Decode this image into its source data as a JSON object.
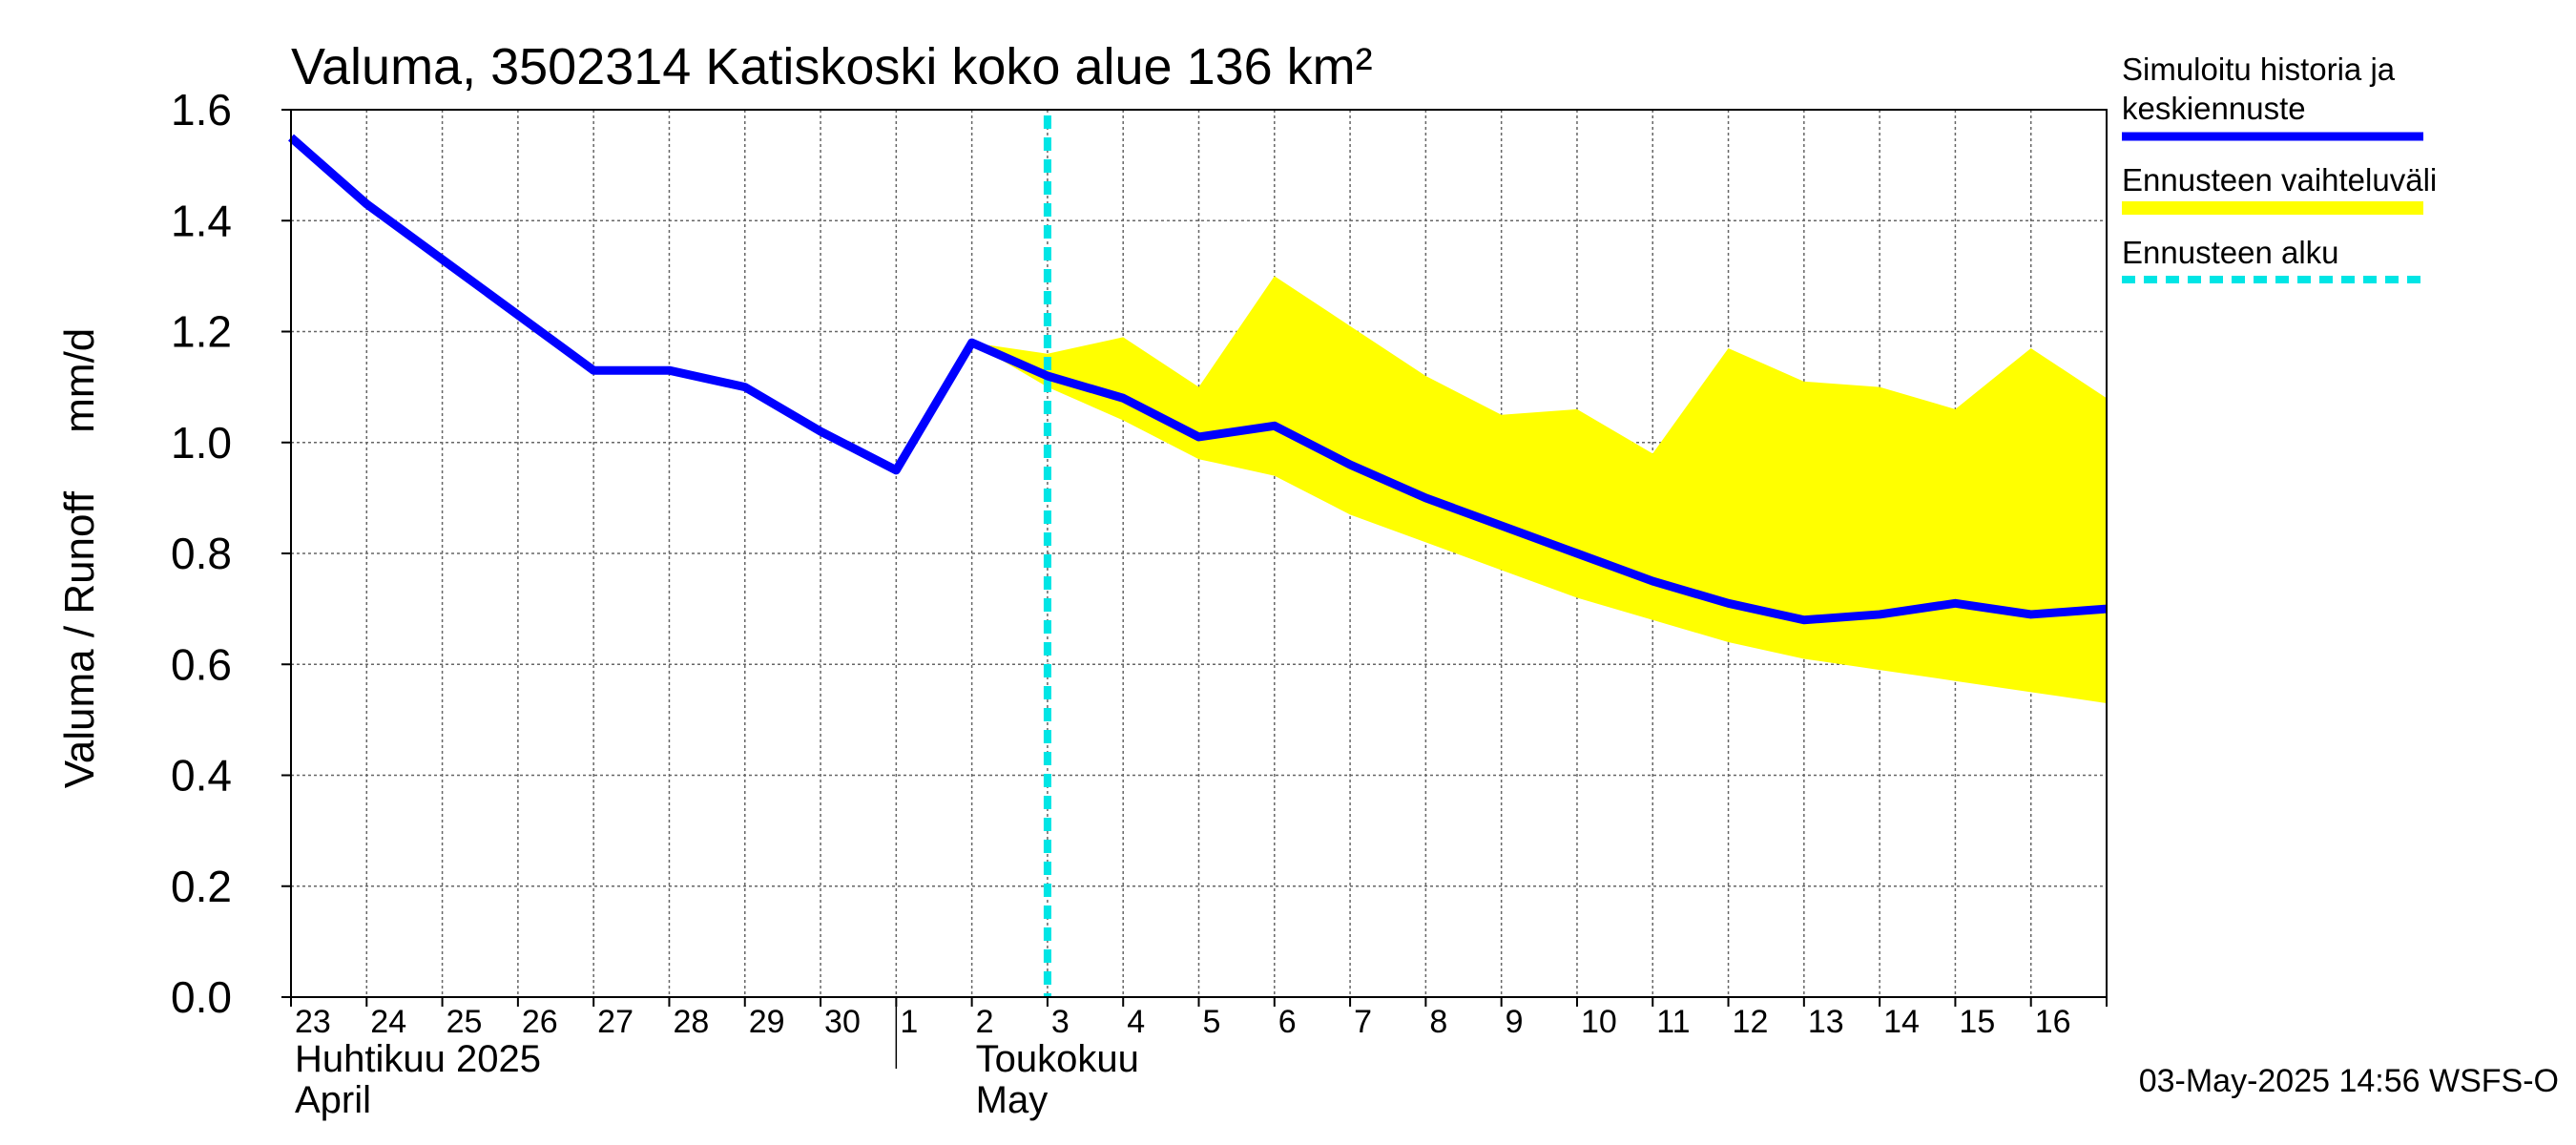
{
  "chart_data": {
    "type": "line",
    "title": "Valuma, 3502314 Katiskoski koko alue 136 km²",
    "ylabel": "Valuma / Runoff     mm/d",
    "ylim": [
      0.0,
      1.6
    ],
    "yticks": [
      "0.0",
      "0.2",
      "0.4",
      "0.6",
      "0.8",
      "1.0",
      "1.2",
      "1.4",
      "1.6"
    ],
    "xlim": [
      0,
      24
    ],
    "day_labels": [
      "23",
      "24",
      "25",
      "26",
      "27",
      "28",
      "29",
      "30",
      "1",
      "2",
      "3",
      "4",
      "5",
      "6",
      "7",
      "8",
      "9",
      "10",
      "11",
      "12",
      "13",
      "14",
      "15",
      "16"
    ],
    "month_labels": [
      {
        "fi": "Huhtikuu  2025",
        "en": "April",
        "start_day": 0
      },
      {
        "fi": "Toukokuu",
        "en": "May",
        "start_day": 8
      }
    ],
    "grid": true,
    "forecast_start_x": 10.0,
    "series": [
      {
        "name": "Simuloitu historia ja keskiennuste",
        "color": "#0000ff",
        "x": [
          0,
          1,
          2,
          3,
          4,
          5,
          6,
          7,
          8,
          9,
          10,
          11,
          12,
          13,
          14,
          15,
          16,
          17,
          18,
          19,
          20,
          21,
          22,
          23,
          24
        ],
        "values": [
          1.55,
          1.43,
          1.33,
          1.23,
          1.13,
          1.13,
          1.1,
          1.02,
          0.95,
          1.18,
          1.12,
          1.08,
          1.01,
          1.03,
          0.96,
          0.9,
          0.85,
          0.8,
          0.75,
          0.71,
          0.68,
          0.69,
          0.71,
          0.69,
          0.7
        ]
      }
    ],
    "band": {
      "name": "Ennusteen vaihteluväli",
      "color": "#ffff00",
      "x": [
        9,
        10,
        11,
        12,
        13,
        14,
        15,
        16,
        17,
        18,
        19,
        20,
        21,
        22,
        23,
        24
      ],
      "upper": [
        1.18,
        1.16,
        1.19,
        1.1,
        1.3,
        1.21,
        1.12,
        1.05,
        1.06,
        0.98,
        1.17,
        1.11,
        1.1,
        1.06,
        1.17,
        1.08
      ],
      "lower": [
        1.18,
        1.1,
        1.04,
        0.97,
        0.94,
        0.87,
        0.82,
        0.77,
        0.72,
        0.68,
        0.64,
        0.61,
        0.59,
        0.57,
        0.55,
        0.53
      ]
    },
    "legend": {
      "placement": "right",
      "items": [
        {
          "label_lines": [
            "Simuloitu historia ja",
            "keskiennuste"
          ],
          "color": "#0000ff",
          "style": "solid"
        },
        {
          "label_lines": [
            "Ennusteen vaihteluväli"
          ],
          "color": "#ffff00",
          "style": "band"
        },
        {
          "label_lines": [
            "Ennusteen alku"
          ],
          "color": "#00e5e5",
          "style": "dashed"
        }
      ]
    },
    "footer": "03-May-2025 14:56 WSFS-O"
  }
}
